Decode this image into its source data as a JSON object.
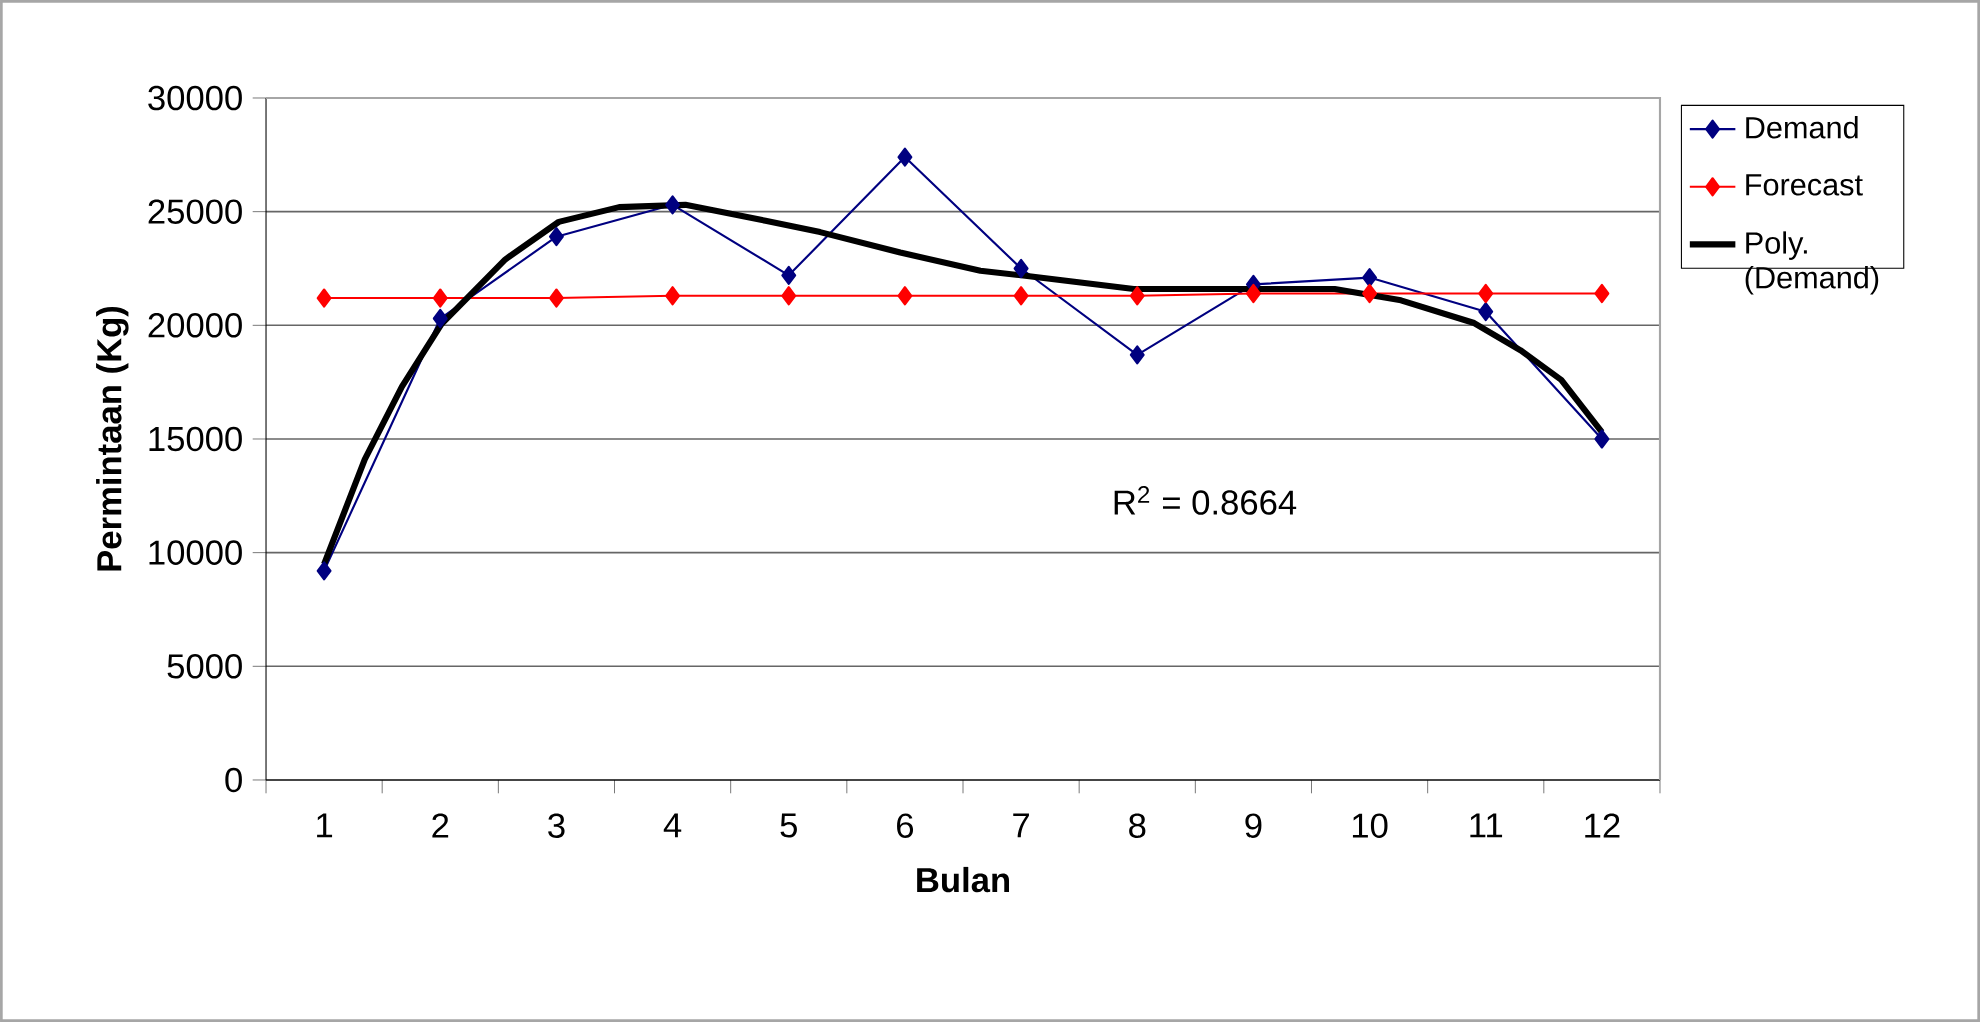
{
  "chart_data": {
    "type": "line",
    "xlabel": "Bulan",
    "ylabel": "Permintaan (Kg)",
    "x": [
      1,
      2,
      3,
      4,
      5,
      6,
      7,
      8,
      9,
      10,
      11,
      12
    ],
    "xlim": [
      0.5,
      12.5
    ],
    "xticks": [
      1,
      2,
      3,
      4,
      5,
      6,
      7,
      8,
      9,
      10,
      11,
      12
    ],
    "ylim": [
      0,
      30000
    ],
    "yticks": [
      0,
      5000,
      10000,
      15000,
      20000,
      25000,
      30000
    ],
    "grid": "y",
    "legend": "right",
    "annotations": [
      "R$^{2}$ = 0.8664"
    ],
    "series": [
      {
        "name": "Demand",
        "color": "#000080",
        "marker": "diamond",
        "values": [
          9200,
          20300,
          23900,
          25300,
          22200,
          27400,
          22500,
          18700,
          21800,
          22100,
          20600,
          15000
        ]
      },
      {
        "name": "Forecast",
        "color": "#ff0000",
        "marker": "diamond",
        "values": [
          21200,
          21200,
          21200,
          21300,
          21300,
          21300,
          21300,
          21300,
          21400,
          21400,
          21400,
          21400
        ]
      },
      {
        "name": "Poly. (Demand)",
        "color": "#000000",
        "marker": "none",
        "x": [
          1,
          1.35,
          1.67,
          2.01,
          2.56,
          3.02,
          3.54,
          4.11,
          4.8,
          5.27,
          5.96,
          6.65,
          7.0,
          7.97,
          9.7,
          10.27,
          10.9,
          11.3,
          11.65,
          12
        ],
        "values": [
          9500,
          14100,
          17300,
          20050,
          22900,
          24550,
          25200,
          25300,
          24600,
          24100,
          23200,
          22400,
          22200,
          21600,
          21600,
          21100,
          20100,
          18900,
          17600,
          15300
        ]
      }
    ]
  }
}
